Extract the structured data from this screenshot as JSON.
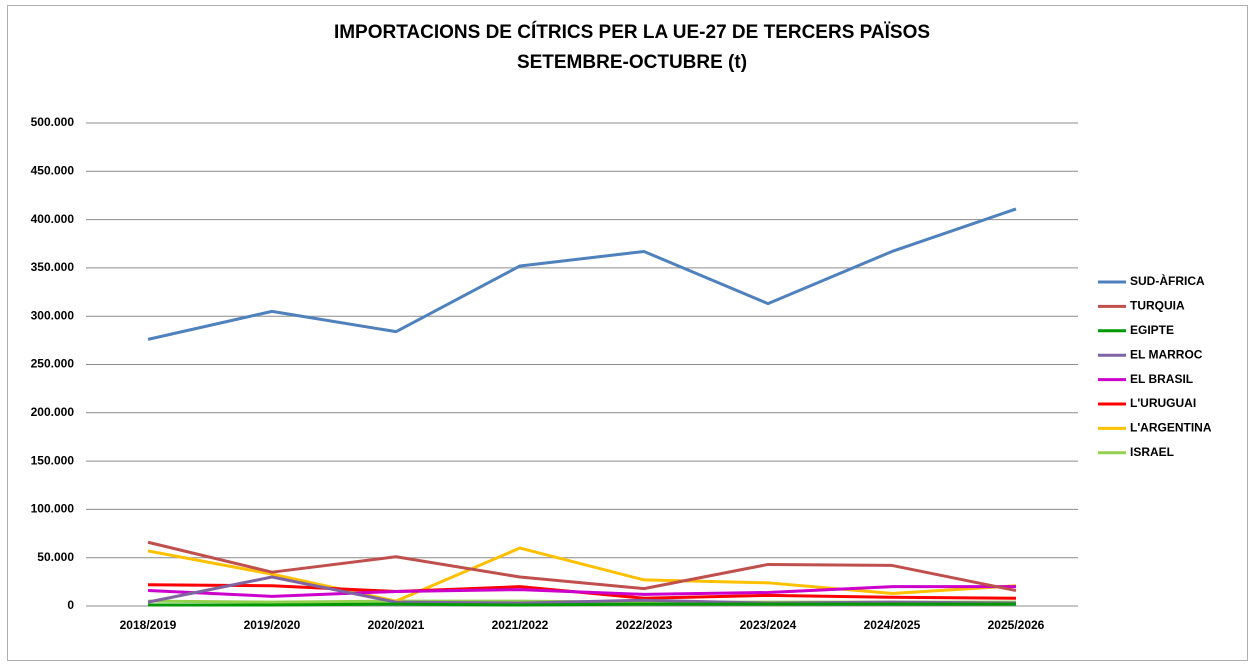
{
  "chart_data": {
    "type": "line",
    "title": "IMPORTACIONS DE CÍTRICS PER LA UE-27 DE TERCERS PAÏSOS",
    "subtitle": "SETEMBRE-OCTUBRE (t)",
    "categories": [
      "2018/2019",
      "2019/2020",
      "2020/2021",
      "2021/2022",
      "2022/2023",
      "2023/2024",
      "2024/2025",
      "2025/2026"
    ],
    "series": [
      {
        "name": "SUD-ÀFRICA",
        "color": "#4f81bd",
        "values": [
          276000,
          305000,
          284000,
          352000,
          367000,
          313000,
          367000,
          411000
        ]
      },
      {
        "name": "TURQUIA",
        "color": "#c0504d",
        "values": [
          66000,
          35000,
          51000,
          30000,
          18000,
          43000,
          42000,
          16000
        ]
      },
      {
        "name": "EGIPTE",
        "color": "#009a00",
        "values": [
          1000,
          1000,
          2000,
          1000,
          2000,
          2000,
          2000,
          2000
        ]
      },
      {
        "name": "EL MARROC",
        "color": "#8064a2",
        "values": [
          4000,
          30000,
          4000,
          3000,
          6000,
          3000,
          4000,
          3000
        ]
      },
      {
        "name": "EL BRASIL",
        "color": "#cc00cc",
        "values": [
          16000,
          10000,
          15000,
          17000,
          12000,
          14000,
          20000,
          20000
        ]
      },
      {
        "name": "L'URUGUAI",
        "color": "#ff0000",
        "values": [
          22000,
          21000,
          15000,
          20000,
          8000,
          11000,
          9000,
          8000
        ]
      },
      {
        "name": "L'ARGENTINA",
        "color": "#ffc000",
        "values": [
          57000,
          33000,
          5000,
          60000,
          27000,
          24000,
          13000,
          21000
        ]
      },
      {
        "name": "ISRAEL",
        "color": "#92d050",
        "values": [
          5000,
          4000,
          5000,
          5000,
          4000,
          4000,
          4000,
          4000
        ]
      }
    ],
    "ylim": [
      0,
      500000
    ],
    "yticks": [
      0,
      {
        "value": 50000,
        "label": "50.000"
      },
      {
        "value": 100000,
        "label": "100.000"
      },
      {
        "value": 150000,
        "label": "150.000"
      },
      {
        "value": 200000,
        "label": "200.000"
      },
      {
        "value": 250000,
        "label": "250.000"
      },
      {
        "value": 300000,
        "label": "300.000"
      },
      {
        "value": 350000,
        "label": "350.000"
      },
      {
        "value": 400000,
        "label": "400.000"
      },
      {
        "value": 450000,
        "label": "450.000"
      },
      {
        "value": 500000,
        "label": "500.000"
      }
    ],
    "grid": true,
    "legend": "right"
  }
}
